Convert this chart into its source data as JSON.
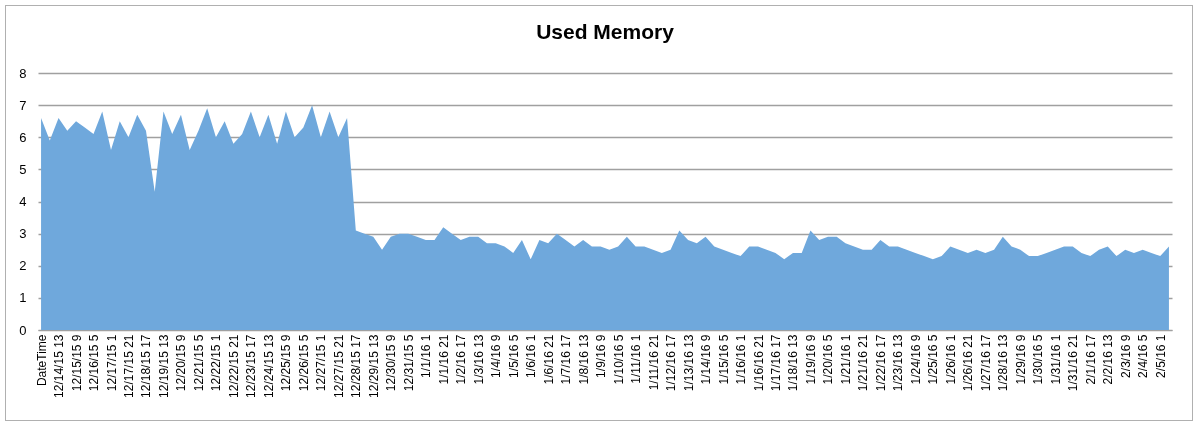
{
  "chart_data": {
    "type": "area",
    "title": "Used Memory",
    "categories": [
      "DateTime",
      null,
      "12/14/15 13",
      null,
      "12/15/15 9",
      null,
      "12/16/15 5",
      null,
      "12/17/15 1",
      null,
      "12/17/15 21",
      null,
      "12/18/15 17",
      null,
      "12/19/15 13",
      null,
      "12/20/15 9",
      null,
      "12/21/15 5",
      null,
      "12/22/15 1",
      null,
      "12/22/15 21",
      null,
      "12/23/15 17",
      null,
      "12/24/15 13",
      null,
      "12/25/15 9",
      null,
      "12/26/15 5",
      null,
      "12/27/15 1",
      null,
      "12/27/15 21",
      null,
      "12/28/15 17",
      null,
      "12/29/15 13",
      null,
      "12/30/15 9",
      null,
      "12/31/15 5",
      null,
      "1/1/16 1",
      null,
      "1/1/16 21",
      null,
      "1/2/16 17",
      null,
      "1/3/16 13",
      null,
      "1/4/16 9",
      null,
      "1/5/16 5",
      null,
      "1/6/16 1",
      null,
      "1/6/16 21",
      null,
      "1/7/16 17",
      null,
      "1/8/16 13",
      null,
      "1/9/16 9",
      null,
      "1/10/16 5",
      null,
      "1/11/16 1",
      null,
      "1/11/16 21",
      null,
      "1/12/16 17",
      null,
      "1/13/16 13",
      null,
      "1/14/16 9",
      null,
      "1/15/16 5",
      null,
      "1/16/16 1",
      null,
      "1/16/16 21",
      null,
      "1/17/16 17",
      null,
      "1/18/16 13",
      null,
      "1/19/16 9",
      null,
      "1/20/16 5",
      null,
      "1/21/16 1",
      null,
      "1/21/16 21",
      null,
      "1/22/16 17",
      null,
      "1/23/16 13",
      null,
      "1/24/16 9",
      null,
      "1/25/16 5",
      null,
      "1/26/16 1",
      null,
      "1/26/16 21",
      null,
      "1/27/16 17",
      null,
      "1/28/16 13",
      null,
      "1/29/16 9",
      null,
      "1/30/16 5",
      null,
      "1/31/16 1",
      null,
      "1/31/16 21",
      null,
      "2/1/16 17",
      null,
      "2/2/16 13",
      null,
      "2/3/16 9",
      null,
      "2/4/16 5",
      null,
      "2/5/16 1",
      null
    ],
    "values": [
      6.6,
      5.9,
      6.6,
      6.2,
      6.5,
      6.3,
      6.1,
      6.8,
      5.6,
      6.5,
      6.0,
      6.7,
      6.2,
      4.3,
      6.8,
      6.1,
      6.7,
      5.6,
      6.2,
      6.9,
      6.0,
      6.5,
      5.8,
      6.1,
      6.8,
      6.0,
      6.7,
      5.8,
      6.8,
      6.0,
      6.3,
      7.0,
      6.0,
      6.8,
      6.0,
      6.6,
      3.1,
      3.0,
      2.9,
      2.5,
      2.9,
      3.0,
      3.0,
      2.9,
      2.8,
      2.8,
      3.2,
      3.0,
      2.8,
      2.9,
      2.9,
      2.7,
      2.7,
      2.6,
      2.4,
      2.8,
      2.2,
      2.8,
      2.7,
      3.0,
      2.8,
      2.6,
      2.8,
      2.6,
      2.6,
      2.5,
      2.6,
      2.9,
      2.6,
      2.6,
      2.5,
      2.4,
      2.5,
      3.1,
      2.8,
      2.7,
      2.9,
      2.6,
      2.5,
      2.4,
      2.3,
      2.6,
      2.6,
      2.5,
      2.4,
      2.2,
      2.4,
      2.4,
      3.1,
      2.8,
      2.9,
      2.9,
      2.7,
      2.6,
      2.5,
      2.5,
      2.8,
      2.6,
      2.6,
      2.5,
      2.4,
      2.3,
      2.2,
      2.3,
      2.6,
      2.5,
      2.4,
      2.5,
      2.4,
      2.5,
      2.9,
      2.6,
      2.5,
      2.3,
      2.3,
      2.4,
      2.5,
      2.6,
      2.6,
      2.4,
      2.3,
      2.5,
      2.6,
      2.3,
      2.5,
      2.4,
      2.5,
      2.4,
      2.3,
      2.6
    ],
    "color": "#6fa8dc",
    "ylim": [
      0,
      8
    ],
    "yticks": [
      0,
      1,
      2,
      3,
      4,
      5,
      6,
      7,
      8
    ],
    "grid": "y"
  }
}
